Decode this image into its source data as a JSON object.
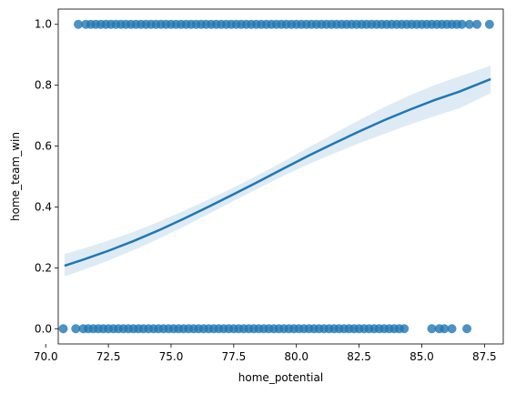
{
  "chart_data": {
    "type": "scatter",
    "title": "",
    "xlabel": "home_potential",
    "ylabel": "home_team_win",
    "xlim": [
      70.5,
      88.25
    ],
    "ylim": [
      -0.05,
      1.05
    ],
    "x_ticks": [
      70.0,
      72.5,
      75.0,
      77.5,
      80.0,
      82.5,
      85.0,
      87.5
    ],
    "x_tick_labels": [
      "70.0",
      "72.5",
      "75.0",
      "77.5",
      "80.0",
      "82.5",
      "85.0",
      "87.5"
    ],
    "y_ticks": [
      0.0,
      0.2,
      0.4,
      0.6,
      0.8,
      1.0
    ],
    "y_tick_labels": [
      "0.0",
      "0.2",
      "0.4",
      "0.6",
      "0.8",
      "1.0"
    ],
    "grid": false,
    "point_color": "#1f77b4",
    "line_color": "#1f77b4",
    "band_color": "#1f77b4",
    "series": [
      {
        "kind": "points",
        "y": 1,
        "x": [
          71.3,
          71.6,
          71.8,
          72.0,
          72.2,
          72.4,
          72.6,
          72.8,
          73.0,
          73.2,
          73.4,
          73.6,
          73.8,
          74.0,
          74.2,
          74.4,
          74.6,
          74.8,
          75.0,
          75.2,
          75.4,
          75.6,
          75.8,
          76.0,
          76.2,
          76.4,
          76.6,
          76.8,
          77.0,
          77.2,
          77.4,
          77.6,
          77.8,
          78.0,
          78.2,
          78.4,
          78.6,
          78.8,
          79.0,
          79.2,
          79.4,
          79.6,
          79.8,
          80.0,
          80.2,
          80.4,
          80.6,
          80.8,
          81.0,
          81.2,
          81.4,
          81.6,
          81.8,
          82.0,
          82.2,
          82.4,
          82.6,
          82.8,
          83.0,
          83.2,
          83.4,
          83.6,
          83.8,
          84.0,
          84.2,
          84.4,
          84.6,
          84.8,
          85.0,
          85.2,
          85.4,
          85.6,
          85.8,
          86.0,
          86.2,
          86.4,
          86.6,
          86.9,
          87.2,
          87.7
        ]
      },
      {
        "kind": "points",
        "y": 0,
        "x": [
          70.7,
          71.2,
          71.5,
          71.7,
          71.9,
          72.1,
          72.3,
          72.5,
          72.7,
          72.9,
          73.1,
          73.3,
          73.5,
          73.7,
          73.9,
          74.1,
          74.3,
          74.5,
          74.7,
          74.9,
          75.1,
          75.3,
          75.5,
          75.7,
          75.9,
          76.1,
          76.3,
          76.5,
          76.7,
          76.9,
          77.1,
          77.3,
          77.5,
          77.7,
          77.9,
          78.1,
          78.3,
          78.5,
          78.7,
          78.9,
          79.1,
          79.3,
          79.5,
          79.7,
          79.9,
          80.1,
          80.3,
          80.5,
          80.7,
          80.9,
          81.1,
          81.3,
          81.5,
          81.7,
          81.9,
          82.1,
          82.3,
          82.5,
          82.7,
          82.9,
          83.1,
          83.3,
          83.5,
          83.7,
          83.9,
          84.1,
          84.3,
          85.4,
          85.7,
          85.9,
          86.2,
          86.8
        ]
      },
      {
        "kind": "logistic-fit",
        "x": [
          70.75,
          71.5,
          72.5,
          73.5,
          74.5,
          75.5,
          76.5,
          77.5,
          78.5,
          79.5,
          80.5,
          81.5,
          82.5,
          83.5,
          84.5,
          85.5,
          86.5,
          87.75
        ],
        "y": [
          0.207,
          0.227,
          0.256,
          0.288,
          0.323,
          0.361,
          0.401,
          0.442,
          0.484,
          0.527,
          0.569,
          0.609,
          0.648,
          0.685,
          0.719,
          0.751,
          0.779,
          0.82
        ],
        "ci_lower": [
          0.172,
          0.193,
          0.224,
          0.258,
          0.295,
          0.335,
          0.377,
          0.42,
          0.462,
          0.503,
          0.541,
          0.576,
          0.609,
          0.64,
          0.67,
          0.698,
          0.724,
          0.774
        ],
        "ci_upper": [
          0.245,
          0.263,
          0.29,
          0.318,
          0.351,
          0.387,
          0.425,
          0.464,
          0.506,
          0.55,
          0.596,
          0.641,
          0.685,
          0.728,
          0.766,
          0.8,
          0.829,
          0.864
        ]
      }
    ]
  }
}
